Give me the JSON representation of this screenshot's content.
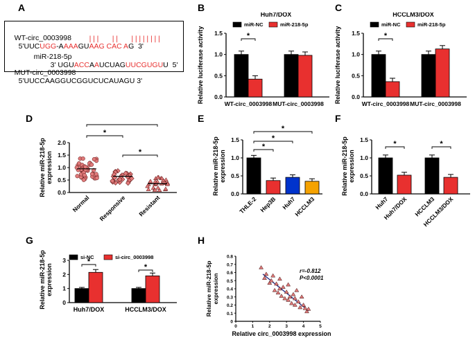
{
  "panel_labels": [
    "A",
    "B",
    "C",
    "D",
    "E",
    "F",
    "G",
    "H"
  ],
  "seq": {
    "wt_name": "WT-circ_0003998",
    "wt_prefix": "5'UUC",
    "wt_parts": [
      [
        "UGG",
        "r"
      ],
      [
        "-A",
        "k"
      ],
      [
        "AAA",
        "r"
      ],
      [
        "GU",
        "k"
      ],
      [
        "AAG CAC A",
        "r"
      ],
      [
        "G",
        "k"
      ],
      [
        "  3'",
        "k"
      ]
    ],
    "pipes": "|||   ||   ||||||||",
    "mir_name": "miR-218-5p",
    "mir_prefix": "3' UGU",
    "mir_parts": [
      [
        "ACC",
        "r"
      ],
      [
        "A",
        "k"
      ],
      [
        "A",
        "r"
      ],
      [
        "U",
        "k"
      ],
      [
        "CUAG",
        "k"
      ],
      [
        "UUCGUGU",
        "r"
      ],
      [
        "U",
        "k"
      ],
      [
        "  5'",
        "k"
      ]
    ],
    "mut_name": "MUT-circ_0003998",
    "mut_seq": "5'UUCCAAGGUCGGUCUCAUAGU 3'"
  },
  "colors": {
    "black": "#000000",
    "red": "#e8302f",
    "orange": "#f5a200",
    "blue": "#0033cc",
    "pink": "#e07a7a",
    "navy": "#1a237e"
  },
  "chart_data": [
    {
      "id": "B",
      "type": "bar",
      "title": "Huh7/DOX",
      "ylabel": "Relative luciferase activity",
      "ylim": [
        0,
        1.5
      ],
      "yticks": [
        "0.0",
        "0.5",
        "1.0",
        "1.5"
      ],
      "categories": [
        "WT-circ_0003998",
        "MUT-circ_0003998"
      ],
      "series": [
        {
          "name": "miR-NC",
          "values": [
            1.0,
            1.0
          ]
        },
        {
          "name": "miR-218-5p",
          "values": [
            0.42,
            0.98
          ]
        }
      ],
      "significance": [
        "*"
      ]
    },
    {
      "id": "C",
      "type": "bar",
      "title": "HCCLM3/DOX",
      "ylabel": "Relative luciferase activity",
      "ylim": [
        0,
        1.5
      ],
      "yticks": [
        "0.0",
        "0.5",
        "1.0",
        "1.5"
      ],
      "categories": [
        "WT-circ_0003998",
        "MUT-circ_0003998"
      ],
      "series": [
        {
          "name": "miR-NC",
          "values": [
            1.0,
            1.0
          ]
        },
        {
          "name": "miR-218-5p",
          "values": [
            0.36,
            1.13
          ]
        }
      ],
      "significance": [
        "*"
      ]
    },
    {
      "id": "D",
      "type": "scatter",
      "ylabel": "Relative miR-218-5p expression",
      "ylim": [
        0,
        2.0
      ],
      "yticks": [
        "0.0",
        "0.5",
        "1.0",
        "1.5",
        "2.0"
      ],
      "categories": [
        "Normal",
        "Responsive",
        "Resistant"
      ],
      "means": [
        0.95,
        0.65,
        0.35
      ],
      "significance": [
        "*",
        "*",
        "*"
      ]
    },
    {
      "id": "E",
      "type": "bar",
      "ylabel": "Relative miR-218-5p expression",
      "ylim": [
        0,
        1.5
      ],
      "yticks": [
        "0.0",
        "0.5",
        "1.0",
        "1.5"
      ],
      "categories": [
        "THLE-2",
        "Hep3B",
        "Huh7",
        "HCCLM3"
      ],
      "values": [
        1.0,
        0.37,
        0.46,
        0.35
      ],
      "significance": [
        "*",
        "*",
        "*"
      ]
    },
    {
      "id": "F",
      "type": "bar",
      "ylabel": "Relative miR-218-5p expression",
      "ylim": [
        0,
        1.5
      ],
      "yticks": [
        "0.0",
        "0.5",
        "1.0",
        "1.5"
      ],
      "categories": [
        "Huh7",
        "Huh7/DOX",
        "HCCLM3",
        "HCCLM3/DOX"
      ],
      "values": [
        1.0,
        0.52,
        1.0,
        0.46
      ],
      "significance": [
        "*",
        "*"
      ]
    },
    {
      "id": "G",
      "type": "bar",
      "ylabel": "Relative miR-218-5p expression",
      "ylim": [
        0,
        3
      ],
      "yticks": [
        "0",
        "1",
        "2",
        "3"
      ],
      "categories": [
        "Huh7/DOX",
        "HCCLM3/DOX"
      ],
      "series": [
        {
          "name": "si-NC",
          "values": [
            1.0,
            1.0
          ]
        },
        {
          "name": "si-circ_0003998",
          "values": [
            2.15,
            1.9
          ]
        }
      ],
      "significance": [
        "*",
        "*"
      ]
    },
    {
      "id": "H",
      "type": "scatter",
      "xlabel": "Relative circ_0003998 expression",
      "ylabel": "Relative miR-218-5p expression",
      "xlim": [
        0,
        5
      ],
      "ylim": [
        0,
        0.8
      ],
      "xticks": [
        "0",
        "1",
        "2",
        "3",
        "4",
        "5"
      ],
      "yticks": [
        "0",
        "0.1",
        "0.2",
        "0.3",
        "0.4",
        "0.5",
        "0.6",
        "0.7",
        "0.8"
      ],
      "r_text": "r=-0.812",
      "p_text": "P<0.0001",
      "points": [
        [
          1.5,
          0.66
        ],
        [
          1.7,
          0.53
        ],
        [
          1.8,
          0.58
        ],
        [
          2.0,
          0.47
        ],
        [
          2.1,
          0.5
        ],
        [
          2.2,
          0.56
        ],
        [
          2.3,
          0.38
        ],
        [
          2.4,
          0.46
        ],
        [
          2.5,
          0.35
        ],
        [
          2.6,
          0.4
        ],
        [
          2.6,
          0.52
        ],
        [
          2.7,
          0.31
        ],
        [
          2.8,
          0.42
        ],
        [
          2.9,
          0.28
        ],
        [
          3.0,
          0.36
        ],
        [
          3.1,
          0.26
        ],
        [
          3.1,
          0.45
        ],
        [
          3.2,
          0.3
        ],
        [
          3.3,
          0.22
        ],
        [
          3.4,
          0.33
        ],
        [
          3.5,
          0.28
        ],
        [
          3.5,
          0.2
        ],
        [
          3.6,
          0.38
        ],
        [
          3.7,
          0.24
        ],
        [
          3.8,
          0.17
        ],
        [
          3.9,
          0.3
        ],
        [
          4.0,
          0.2
        ],
        [
          4.1,
          0.16
        ],
        [
          4.2,
          0.12
        ],
        [
          4.3,
          0.15
        ]
      ],
      "fit": [
        [
          1.6,
          0.58
        ],
        [
          4.3,
          0.13
        ]
      ]
    }
  ]
}
